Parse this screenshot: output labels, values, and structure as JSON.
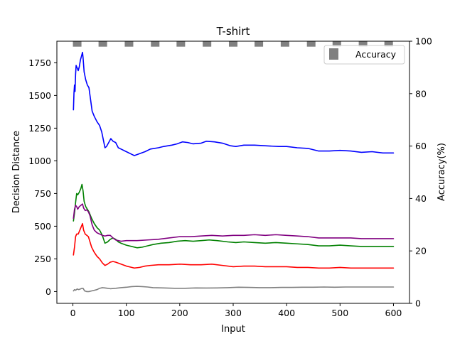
{
  "chart_data": {
    "type": "line",
    "title": "T-shirt",
    "xlabel": "Input",
    "ylabel": "Decision Distance",
    "ylabel_right": "Accuracy(%)",
    "xlim": [
      -30,
      630
    ],
    "ylim": [
      -90,
      1915
    ],
    "ylim_right": [
      0,
      100
    ],
    "x_ticks": [
      0,
      100,
      200,
      300,
      400,
      500,
      600
    ],
    "y_ticks": [
      0,
      250,
      500,
      750,
      1000,
      1250,
      1500,
      1750
    ],
    "y_ticks_right": [
      0,
      20,
      40,
      60,
      80,
      100
    ],
    "grid": false,
    "legend": {
      "position": "top-right",
      "entries": [
        "Accuracy"
      ]
    },
    "series": [
      {
        "color": "#0000ff",
        "points": [
          [
            1,
            1390
          ],
          [
            2,
            1520
          ],
          [
            3,
            1580
          ],
          [
            4,
            1530
          ],
          [
            5,
            1660
          ],
          [
            6,
            1730
          ],
          [
            8,
            1710
          ],
          [
            10,
            1690
          ],
          [
            12,
            1720
          ],
          [
            14,
            1770
          ],
          [
            16,
            1800
          ],
          [
            18,
            1830
          ],
          [
            19,
            1790
          ],
          [
            21,
            1680
          ],
          [
            24,
            1620
          ],
          [
            27,
            1580
          ],
          [
            30,
            1560
          ],
          [
            33,
            1470
          ],
          [
            36,
            1380
          ],
          [
            40,
            1340
          ],
          [
            45,
            1300
          ],
          [
            50,
            1270
          ],
          [
            54,
            1220
          ],
          [
            57,
            1160
          ],
          [
            60,
            1100
          ],
          [
            63,
            1110
          ],
          [
            67,
            1140
          ],
          [
            71,
            1170
          ],
          [
            75,
            1150
          ],
          [
            80,
            1140
          ],
          [
            85,
            1100
          ],
          [
            90,
            1090
          ],
          [
            100,
            1070
          ],
          [
            110,
            1050
          ],
          [
            115,
            1040
          ],
          [
            125,
            1055
          ],
          [
            135,
            1070
          ],
          [
            145,
            1090
          ],
          [
            160,
            1100
          ],
          [
            170,
            1110
          ],
          [
            185,
            1120
          ],
          [
            195,
            1130
          ],
          [
            205,
            1145
          ],
          [
            215,
            1140
          ],
          [
            225,
            1130
          ],
          [
            240,
            1135
          ],
          [
            250,
            1150
          ],
          [
            265,
            1145
          ],
          [
            280,
            1135
          ],
          [
            295,
            1115
          ],
          [
            305,
            1110
          ],
          [
            320,
            1120
          ],
          [
            340,
            1120
          ],
          [
            360,
            1115
          ],
          [
            385,
            1110
          ],
          [
            400,
            1110
          ],
          [
            420,
            1100
          ],
          [
            440,
            1095
          ],
          [
            460,
            1075
          ],
          [
            480,
            1075
          ],
          [
            500,
            1080
          ],
          [
            520,
            1075
          ],
          [
            540,
            1065
          ],
          [
            560,
            1070
          ],
          [
            580,
            1060
          ],
          [
            600,
            1060
          ]
        ]
      },
      {
        "color": "#008000",
        "points": [
          [
            1,
            540
          ],
          [
            3,
            600
          ],
          [
            5,
            680
          ],
          [
            7,
            750
          ],
          [
            9,
            740
          ],
          [
            12,
            760
          ],
          [
            15,
            790
          ],
          [
            17,
            820
          ],
          [
            19,
            770
          ],
          [
            21,
            690
          ],
          [
            24,
            650
          ],
          [
            27,
            630
          ],
          [
            30,
            610
          ],
          [
            35,
            560
          ],
          [
            40,
            520
          ],
          [
            45,
            490
          ],
          [
            50,
            470
          ],
          [
            55,
            430
          ],
          [
            60,
            370
          ],
          [
            65,
            380
          ],
          [
            70,
            400
          ],
          [
            75,
            410
          ],
          [
            80,
            400
          ],
          [
            85,
            380
          ],
          [
            90,
            370
          ],
          [
            100,
            355
          ],
          [
            110,
            345
          ],
          [
            120,
            335
          ],
          [
            130,
            340
          ],
          [
            140,
            350
          ],
          [
            150,
            360
          ],
          [
            165,
            370
          ],
          [
            180,
            375
          ],
          [
            195,
            385
          ],
          [
            210,
            390
          ],
          [
            225,
            385
          ],
          [
            240,
            390
          ],
          [
            255,
            395
          ],
          [
            270,
            390
          ],
          [
            290,
            380
          ],
          [
            305,
            375
          ],
          [
            320,
            380
          ],
          [
            340,
            375
          ],
          [
            360,
            370
          ],
          [
            380,
            375
          ],
          [
            400,
            370
          ],
          [
            420,
            365
          ],
          [
            440,
            360
          ],
          [
            460,
            350
          ],
          [
            480,
            350
          ],
          [
            500,
            355
          ],
          [
            520,
            350
          ],
          [
            540,
            345
          ],
          [
            560,
            345
          ],
          [
            580,
            345
          ],
          [
            600,
            345
          ]
        ]
      },
      {
        "color": "#800080",
        "points": [
          [
            1,
            560
          ],
          [
            3,
            630
          ],
          [
            5,
            660
          ],
          [
            7,
            650
          ],
          [
            9,
            630
          ],
          [
            12,
            650
          ],
          [
            15,
            660
          ],
          [
            18,
            670
          ],
          [
            20,
            640
          ],
          [
            23,
            620
          ],
          [
            26,
            625
          ],
          [
            29,
            610
          ],
          [
            32,
            580
          ],
          [
            36,
            510
          ],
          [
            40,
            470
          ],
          [
            45,
            450
          ],
          [
            50,
            440
          ],
          [
            55,
            430
          ],
          [
            60,
            425
          ],
          [
            65,
            430
          ],
          [
            70,
            430
          ],
          [
            75,
            410
          ],
          [
            80,
            395
          ],
          [
            90,
            385
          ],
          [
            100,
            390
          ],
          [
            110,
            390
          ],
          [
            120,
            390
          ],
          [
            140,
            395
          ],
          [
            160,
            400
          ],
          [
            180,
            410
          ],
          [
            200,
            420
          ],
          [
            220,
            420
          ],
          [
            240,
            425
          ],
          [
            260,
            430
          ],
          [
            280,
            425
          ],
          [
            300,
            430
          ],
          [
            320,
            430
          ],
          [
            340,
            435
          ],
          [
            360,
            430
          ],
          [
            380,
            435
          ],
          [
            400,
            430
          ],
          [
            420,
            425
          ],
          [
            440,
            420
          ],
          [
            460,
            410
          ],
          [
            480,
            410
          ],
          [
            500,
            410
          ],
          [
            520,
            410
          ],
          [
            540,
            405
          ],
          [
            560,
            405
          ],
          [
            580,
            405
          ],
          [
            600,
            405
          ]
        ]
      },
      {
        "color": "#ff0000",
        "points": [
          [
            1,
            280
          ],
          [
            3,
            340
          ],
          [
            5,
            420
          ],
          [
            7,
            440
          ],
          [
            10,
            440
          ],
          [
            13,
            470
          ],
          [
            16,
            500
          ],
          [
            18,
            520
          ],
          [
            20,
            470
          ],
          [
            23,
            440
          ],
          [
            26,
            430
          ],
          [
            29,
            420
          ],
          [
            32,
            380
          ],
          [
            35,
            340
          ],
          [
            40,
            300
          ],
          [
            45,
            270
          ],
          [
            50,
            250
          ],
          [
            55,
            220
          ],
          [
            60,
            200
          ],
          [
            65,
            210
          ],
          [
            70,
            225
          ],
          [
            75,
            230
          ],
          [
            80,
            225
          ],
          [
            90,
            210
          ],
          [
            100,
            195
          ],
          [
            110,
            185
          ],
          [
            115,
            180
          ],
          [
            125,
            185
          ],
          [
            135,
            195
          ],
          [
            145,
            200
          ],
          [
            160,
            205
          ],
          [
            180,
            205
          ],
          [
            200,
            210
          ],
          [
            220,
            205
          ],
          [
            240,
            205
          ],
          [
            260,
            210
          ],
          [
            280,
            200
          ],
          [
            300,
            190
          ],
          [
            320,
            195
          ],
          [
            340,
            195
          ],
          [
            360,
            190
          ],
          [
            380,
            190
          ],
          [
            400,
            190
          ],
          [
            420,
            185
          ],
          [
            440,
            185
          ],
          [
            460,
            180
          ],
          [
            480,
            180
          ],
          [
            500,
            185
          ],
          [
            520,
            180
          ],
          [
            540,
            180
          ],
          [
            560,
            180
          ],
          [
            580,
            180
          ],
          [
            600,
            180
          ]
        ]
      },
      {
        "color": "#808080",
        "points": [
          [
            1,
            5
          ],
          [
            3,
            15
          ],
          [
            5,
            10
          ],
          [
            8,
            20
          ],
          [
            11,
            15
          ],
          [
            14,
            20
          ],
          [
            17,
            25
          ],
          [
            19,
            25
          ],
          [
            22,
            5
          ],
          [
            26,
            0
          ],
          [
            30,
            0
          ],
          [
            35,
            5
          ],
          [
            40,
            10
          ],
          [
            45,
            15
          ],
          [
            50,
            25
          ],
          [
            55,
            30
          ],
          [
            60,
            28
          ],
          [
            65,
            25
          ],
          [
            70,
            22
          ],
          [
            80,
            25
          ],
          [
            90,
            30
          ],
          [
            100,
            33
          ],
          [
            110,
            38
          ],
          [
            120,
            40
          ],
          [
            130,
            38
          ],
          [
            140,
            35
          ],
          [
            150,
            30
          ],
          [
            170,
            28
          ],
          [
            190,
            25
          ],
          [
            210,
            25
          ],
          [
            230,
            28
          ],
          [
            250,
            27
          ],
          [
            270,
            28
          ],
          [
            290,
            30
          ],
          [
            310,
            33
          ],
          [
            330,
            32
          ],
          [
            350,
            30
          ],
          [
            370,
            30
          ],
          [
            390,
            32
          ],
          [
            410,
            32
          ],
          [
            430,
            33
          ],
          [
            450,
            33
          ],
          [
            470,
            35
          ],
          [
            490,
            33
          ],
          [
            510,
            35
          ],
          [
            530,
            35
          ],
          [
            550,
            35
          ],
          [
            570,
            35
          ],
          [
            600,
            35
          ]
        ]
      }
    ],
    "accuracy": {
      "name": "Accuracy",
      "color": "#808080",
      "y": 99,
      "x_starts": [
        0,
        48,
        97,
        146,
        194,
        243,
        292,
        340,
        389,
        438,
        486,
        535,
        583
      ],
      "x_width": 16
    }
  }
}
